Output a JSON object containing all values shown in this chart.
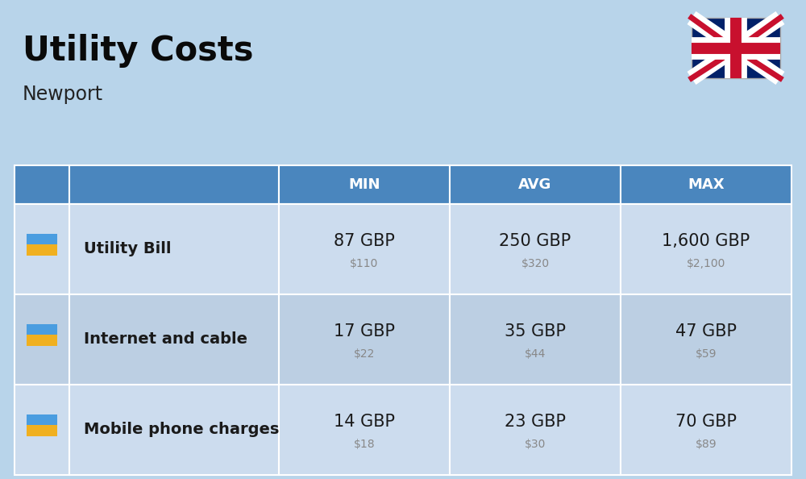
{
  "title": "Utility Costs",
  "subtitle": "Newport",
  "background_color": "#b8d4ea",
  "header_bg_color": "#4a86be",
  "header_text_color": "#ffffff",
  "row_bg_color_1": "#ccdcee",
  "row_bg_color_2": "#bccfe3",
  "col_headers": [
    "MIN",
    "AVG",
    "MAX"
  ],
  "rows": [
    {
      "label": "Utility Bill",
      "min_gbp": "87 GBP",
      "min_usd": "$110",
      "avg_gbp": "250 GBP",
      "avg_usd": "$320",
      "max_gbp": "1,600 GBP",
      "max_usd": "$2,100"
    },
    {
      "label": "Internet and cable",
      "min_gbp": "17 GBP",
      "min_usd": "$22",
      "avg_gbp": "35 GBP",
      "avg_usd": "$44",
      "max_gbp": "47 GBP",
      "max_usd": "$59"
    },
    {
      "label": "Mobile phone charges",
      "min_gbp": "14 GBP",
      "min_usd": "$18",
      "avg_gbp": "23 GBP",
      "avg_usd": "$30",
      "max_gbp": "70 GBP",
      "max_usd": "$89"
    }
  ],
  "title_fontsize": 30,
  "subtitle_fontsize": 17,
  "header_fontsize": 13,
  "cell_fontsize_gbp": 15,
  "cell_fontsize_usd": 10,
  "label_fontsize": 14,
  "gbp_color": "#1a1a1a",
  "usd_color": "#888888"
}
